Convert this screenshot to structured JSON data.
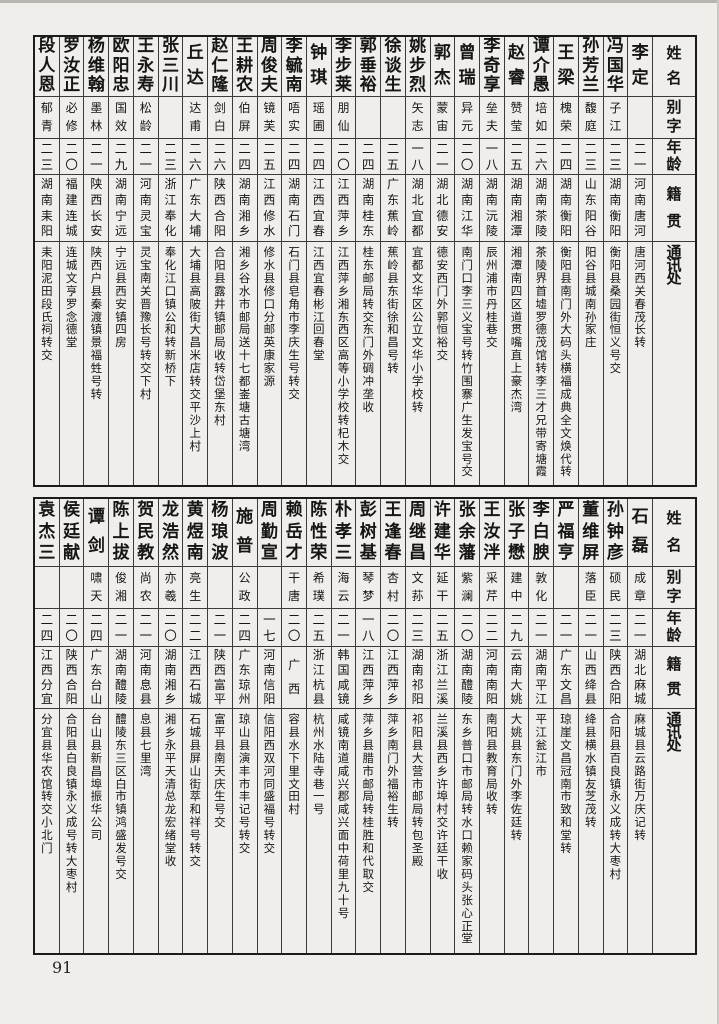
{
  "page": {
    "number": "91"
  },
  "headers": {
    "name": "姓名",
    "courtesy": "别字",
    "age": "年龄",
    "native": "籍贯",
    "address": "通讯处"
  },
  "tables": [
    {
      "position": "top",
      "entries": [
        {
          "name": "李定",
          "courtesy": "",
          "age": "二一",
          "native": "河南唐河",
          "address": "唐河西关春茂长转"
        },
        {
          "name": "冯国华",
          "courtesy": "子江",
          "age": "二三",
          "native": "湖南衡阳",
          "address": "衡阳县桑园街恒义号交"
        },
        {
          "name": "孙芳兰",
          "courtesy": "馥庭",
          "age": "二三",
          "native": "山东阳谷",
          "address": "阳谷县城南孙家庄"
        },
        {
          "name": "王梁",
          "courtesy": "槐荣",
          "age": "二四",
          "native": "湖南衡阳",
          "address": "衡阳县南门外大码头横福成典全文焕代转"
        },
        {
          "name": "谭介愚",
          "courtesy": "培如",
          "age": "二六",
          "native": "湖南茶陵",
          "address": "茶陵界首墟罗德茂馆转李三才兄带寄塘霞"
        },
        {
          "name": "赵睿",
          "courtesy": "赞莹",
          "age": "二五",
          "native": "湖南湘潭",
          "address": "湘潭南四区道贯嘴直上豪杰湾"
        },
        {
          "name": "李奇享",
          "courtesy": "垒夫",
          "age": "一八",
          "native": "湖南沅陵",
          "address": "辰州浦市丹桂巷交"
        },
        {
          "name": "曾瑞",
          "courtesy": "异元",
          "age": "二〇",
          "native": "湖南江华",
          "address": "南门口李三义宝号转竹围寨广生发宝号交"
        },
        {
          "name": "郭杰",
          "courtesy": "蒙宙",
          "age": "二一",
          "native": "湖北德安",
          "address": "德安西门外郭恒裕交"
        },
        {
          "name": "姚步烈",
          "courtesy": "矢志",
          "age": "一八",
          "native": "湖北宜都",
          "address": "宜都文华区公立文华小学校转"
        },
        {
          "name": "徐谈生",
          "courtesy": "",
          "age": "二五",
          "native": "广东蕉岭",
          "address": "蕉岭县东街徐和昌号转"
        },
        {
          "name": "郭垂裕",
          "courtesy": "",
          "age": "二四",
          "native": "湖南桂东",
          "address": "桂东邮局转交东门外碉冲垄收"
        },
        {
          "name": "李步莱",
          "courtesy": "朋仙",
          "age": "二〇",
          "native": "江西萍乡",
          "address": "江西萍乡湘东西区高等小学校转杞木交"
        },
        {
          "name": "钟琪",
          "courtesy": "瑶圃",
          "age": "二四",
          "native": "江西宜春",
          "address": "江西宜春彬江回春堂"
        },
        {
          "name": "李毓南",
          "courtesy": "唔实",
          "age": "二四",
          "native": "湖南石门",
          "address": "石门县皂角市李庆生号转交"
        },
        {
          "name": "周俊夫",
          "courtesy": "镜芙",
          "age": "二五",
          "native": "江西修水",
          "address": "修水县修口分邮英康家源"
        },
        {
          "name": "王耕农",
          "courtesy": "伯屏",
          "age": "二四",
          "native": "湖南湘乡",
          "address": "湘乡谷水市邮局送十七都崟塘古塘湾"
        },
        {
          "name": "赵仁隆",
          "courtesy": "剑白",
          "age": "二六",
          "native": "陕西合阳",
          "address": "合阳县露井镇邮局收转岱堡东村"
        },
        {
          "name": "丘达",
          "courtesy": "达甫",
          "age": "二六",
          "native": "广东大埔",
          "address": "大埔县高陂街大昌米店转交平沙上村"
        },
        {
          "name": "张三川",
          "courtesy": "",
          "age": "二三",
          "native": "浙江奉化",
          "address": "奉化江口镇公和转新桥下"
        },
        {
          "name": "王永寿",
          "courtesy": "松龄",
          "age": "二一",
          "native": "河南灵宝",
          "address": "灵宝南关晋豫长号转交下村"
        },
        {
          "name": "欧阳忠",
          "courtesy": "国效",
          "age": "二九",
          "native": "湖南宁远",
          "address": "宁远县西安镇四房"
        },
        {
          "name": "杨维翰",
          "courtesy": "墨林",
          "age": "二一",
          "native": "陕西长安",
          "address": "陕西户县秦渡镇景福甡号转"
        },
        {
          "name": "罗汝正",
          "courtesy": "必修",
          "age": "二〇",
          "native": "福建连城",
          "address": "连城文亨罗念德堂"
        },
        {
          "name": "段人恩",
          "courtesy": "郁青",
          "age": "二三",
          "native": "湖南耒阳",
          "address": "耒阳泥田段氏祠转交"
        }
      ]
    },
    {
      "position": "bottom",
      "entries": [
        {
          "name": "石磊",
          "courtesy": "成章",
          "age": "二一",
          "native": "湖北麻城",
          "address": "麻城县云路街万庆记转"
        },
        {
          "name": "孙钟彦",
          "courtesy": "硕民",
          "age": "二三",
          "native": "陕西合阳",
          "address": "合阳县百良镇永义成转大枣村"
        },
        {
          "name": "董维屏",
          "courtesy": "落臣",
          "age": "二一",
          "native": "山西绛县",
          "address": "绛县横水镇友芝茂转"
        },
        {
          "name": "严福亨",
          "courtesy": "",
          "age": "二一",
          "native": "广东文昌",
          "address": "琼崖文昌冠南市致和堂转"
        },
        {
          "name": "李白腴",
          "courtesy": "敦化",
          "age": "二一",
          "native": "湖南平江",
          "address": "平江瓮江市"
        },
        {
          "name": "张子懋",
          "courtesy": "建中",
          "age": "二九",
          "native": "云南大姚",
          "address": "大姚县东门外李佐廷转"
        },
        {
          "name": "王汝泮",
          "courtesy": "采芹",
          "age": "二二",
          "native": "河南南阳",
          "address": "南阳县教育局收转"
        },
        {
          "name": "张余藩",
          "courtesy": "紫澜",
          "age": "二〇",
          "native": "湖南醴陵",
          "address": "东乡普口市邮局转水口赖家码头张心正堂"
        },
        {
          "name": "许建华",
          "courtesy": "延干",
          "age": "二五",
          "native": "浙江兰溪",
          "address": "兰溪县西乡许埠村交许廷干收"
        },
        {
          "name": "周继昌",
          "courtesy": "文荪",
          "age": "二三",
          "native": "湖南祁阳",
          "address": "祁阳县大营市邮局转包圣殿"
        },
        {
          "name": "王逢春",
          "courtesy": "杏村",
          "age": "二〇",
          "native": "江西萍乡",
          "address": "萍乡南门外福裕生转"
        },
        {
          "name": "彭树基",
          "courtesy": "琴梦",
          "age": "一八",
          "native": "江西萍乡",
          "address": "萍乡县腊市邮局转桂胜和代取交"
        },
        {
          "name": "朴孝三",
          "courtesy": "海云",
          "age": "二一",
          "native": "韩国咸镜",
          "address": "咸镜南道咸兴郡咸兴面中荷里九十号"
        },
        {
          "name": "陈性荣",
          "courtesy": "希璞",
          "age": "二五",
          "native": "浙江杭县",
          "address": "杭州水陆寺巷一号"
        },
        {
          "name": "赖岳才",
          "courtesy": "干唐",
          "age": "二〇",
          "native": "广西",
          "address": "容县水下里文田村"
        },
        {
          "name": "周勤宣",
          "courtesy": "",
          "age": "一七",
          "native": "河南信阳",
          "address": "信阳西双河同盛福号转交"
        },
        {
          "name": "施普",
          "courtesy": "公政",
          "age": "二四",
          "native": "广东琼州",
          "address": "琼山县演丰市丰记号转交"
        },
        {
          "name": "杨琅波",
          "courtesy": "",
          "age": "二一",
          "native": "陕西富平",
          "address": "富平县南天庆生号交"
        },
        {
          "name": "黄煜南",
          "courtesy": "亮生",
          "age": "二二",
          "native": "江西石城",
          "address": "石城县屏山街萃和祥号转交"
        },
        {
          "name": "龙浩然",
          "courtesy": "亦羲",
          "age": "二〇",
          "native": "湖南湘乡",
          "address": "湘乡永平天清总龙宏绪堂收"
        },
        {
          "name": "贺民教",
          "courtesy": "尚农",
          "age": "二一",
          "native": "河南息县",
          "address": "息县七里湾"
        },
        {
          "name": "陈上拔",
          "courtesy": "俊湘",
          "age": "二一",
          "native": "湖南醴陵",
          "address": "醴陵东三区白市镇鸿盛发号交"
        },
        {
          "name": "谭剑",
          "courtesy": "啸天",
          "age": "二四",
          "native": "广东台山",
          "address": "台山县新昌埠振华公司"
        },
        {
          "name": "侯廷献",
          "courtesy": "",
          "age": "二〇",
          "native": "陕西合阳",
          "address": "合阳县白良镇永义成号转大枣村"
        },
        {
          "name": "袁杰三",
          "courtesy": "",
          "age": "二四",
          "native": "江西分宜",
          "address": "分宜县华农馆转交小北门"
        }
      ]
    }
  ]
}
